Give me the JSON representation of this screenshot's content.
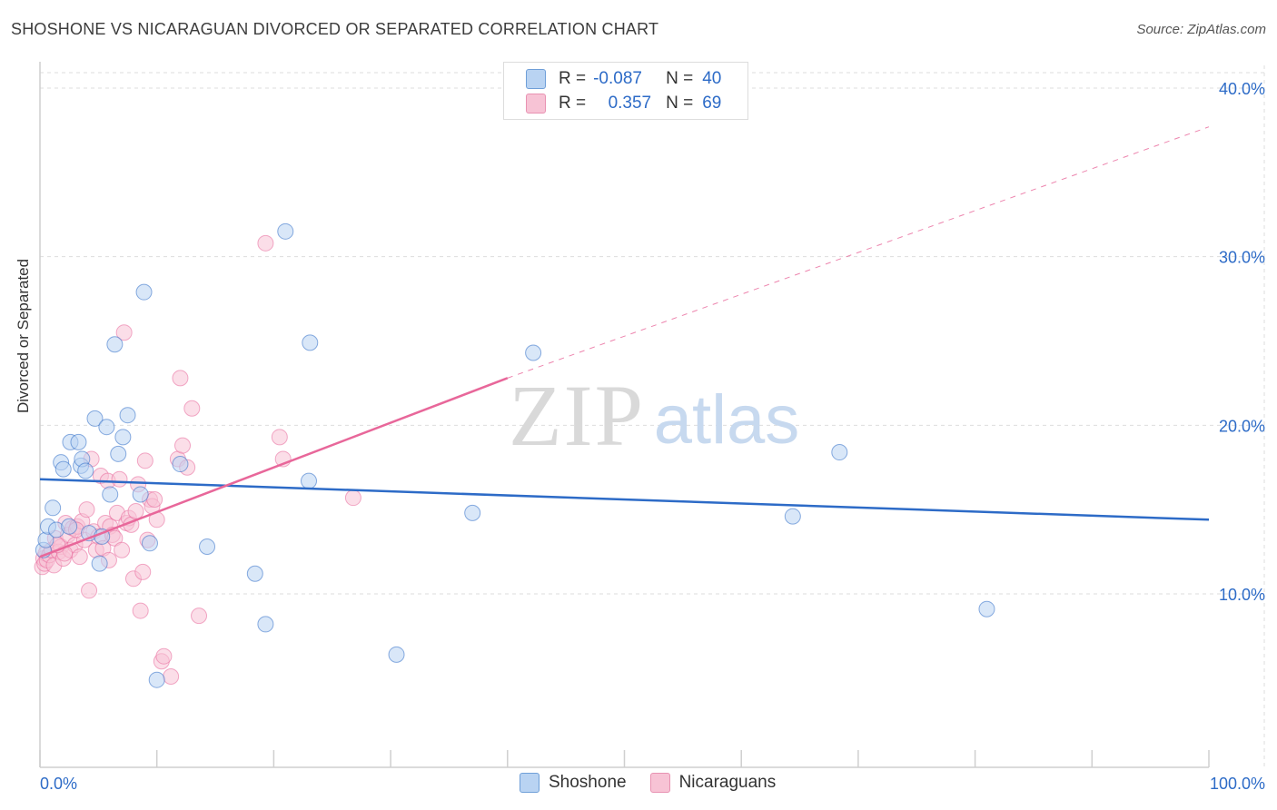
{
  "title": "SHOSHONE VS NICARAGUAN DIVORCED OR SEPARATED CORRELATION CHART",
  "source": "Source: ZipAtlas.com",
  "watermark": {
    "zip": "ZIP",
    "atlas": "atlas"
  },
  "colors": {
    "blue": "#2d6bc7",
    "blue_fill": "#b9d3f2",
    "pink": "#e8679a",
    "pink_fill": "#f7c3d5",
    "grid": "#dddddd",
    "axis_label": "#2d6bc7"
  },
  "legend": {
    "rows": [
      {
        "r_label": "R =",
        "r_value": "-0.087",
        "n_label": "N =",
        "n_value": "40"
      },
      {
        "r_label": "R =",
        "r_value": "0.357",
        "n_label": "N =",
        "n_value": "69"
      }
    ]
  },
  "bottom_legend": [
    "Shoshone",
    "Nicaraguans"
  ],
  "chart_data": {
    "type": "scatter",
    "title": "SHOSHONE VS NICARAGUAN DIVORCED OR SEPARATED CORRELATION CHART",
    "xlabel": "",
    "ylabel": "Divorced or Separated",
    "xlim": [
      0,
      100
    ],
    "ylim": [
      0,
      42
    ],
    "x_tick_labels": [
      {
        "value": 0,
        "label": "0.0%"
      },
      {
        "value": 100,
        "label": "100.0%"
      }
    ],
    "y_tick_labels": [
      {
        "value": 10,
        "label": "10.0%"
      },
      {
        "value": 20,
        "label": "20.0%"
      },
      {
        "value": 30,
        "label": "30.0%"
      },
      {
        "value": 40,
        "label": "40.0%"
      }
    ],
    "x_minor_ticks": [
      0,
      10,
      20,
      30,
      40,
      50,
      60,
      70,
      80,
      90,
      100
    ],
    "grid": true,
    "legend": "top-center",
    "series": [
      {
        "name": "Shoshone",
        "color": "#2d6bc7",
        "fill": "#b9d3f2",
        "R": -0.087,
        "N": 40,
        "trend": {
          "x": [
            0,
            100
          ],
          "y": [
            16.8,
            14.4
          ],
          "dashed_after": null
        },
        "points": [
          [
            0.3,
            12.6
          ],
          [
            0.5,
            13.2
          ],
          [
            0.7,
            14.0
          ],
          [
            1.1,
            15.1
          ],
          [
            1.4,
            13.8
          ],
          [
            1.8,
            17.8
          ],
          [
            2.0,
            17.4
          ],
          [
            2.5,
            14.0
          ],
          [
            2.6,
            19.0
          ],
          [
            3.3,
            19.0
          ],
          [
            3.5,
            17.6
          ],
          [
            3.6,
            18.0
          ],
          [
            3.9,
            17.3
          ],
          [
            4.2,
            13.6
          ],
          [
            4.7,
            20.4
          ],
          [
            5.1,
            11.8
          ],
          [
            5.3,
            13.4
          ],
          [
            5.7,
            19.9
          ],
          [
            6.0,
            15.9
          ],
          [
            6.4,
            24.8
          ],
          [
            6.7,
            18.3
          ],
          [
            7.1,
            19.3
          ],
          [
            7.5,
            20.6
          ],
          [
            8.6,
            15.9
          ],
          [
            8.9,
            27.9
          ],
          [
            9.4,
            13.0
          ],
          [
            10.0,
            4.9
          ],
          [
            12.0,
            17.7
          ],
          [
            14.3,
            12.8
          ],
          [
            18.4,
            11.2
          ],
          [
            19.3,
            8.2
          ],
          [
            21.0,
            31.5
          ],
          [
            23.0,
            16.7
          ],
          [
            23.1,
            24.9
          ],
          [
            30.5,
            6.4
          ],
          [
            37.0,
            14.8
          ],
          [
            42.2,
            24.3
          ],
          [
            64.4,
            14.6
          ],
          [
            68.4,
            18.4
          ],
          [
            81.0,
            9.1
          ]
        ]
      },
      {
        "name": "Nicaraguans",
        "color": "#e8679a",
        "fill": "#f7c3d5",
        "R": 0.357,
        "N": 69,
        "trend": {
          "x": [
            0,
            40,
            100
          ],
          "y": [
            12.2,
            22.8,
            37.7
          ],
          "dashed_after": 40
        },
        "points": [
          [
            0.2,
            11.6
          ],
          [
            0.3,
            12.1
          ],
          [
            0.4,
            11.8
          ],
          [
            0.5,
            12.4
          ],
          [
            0.6,
            12.0
          ],
          [
            0.8,
            12.3
          ],
          [
            1.0,
            12.6
          ],
          [
            1.2,
            11.7
          ],
          [
            1.3,
            13.3
          ],
          [
            1.6,
            12.5
          ],
          [
            1.8,
            12.8
          ],
          [
            2.0,
            12.1
          ],
          [
            2.2,
            14.2
          ],
          [
            2.4,
            13.5
          ],
          [
            2.6,
            12.6
          ],
          [
            2.8,
            13.9
          ],
          [
            3.0,
            12.9
          ],
          [
            3.2,
            14.0
          ],
          [
            3.4,
            12.2
          ],
          [
            3.6,
            14.3
          ],
          [
            3.8,
            13.2
          ],
          [
            4.0,
            15.0
          ],
          [
            4.2,
            10.2
          ],
          [
            4.4,
            18.0
          ],
          [
            4.6,
            13.7
          ],
          [
            4.8,
            12.6
          ],
          [
            5.0,
            13.4
          ],
          [
            5.2,
            17.0
          ],
          [
            5.4,
            12.7
          ],
          [
            5.6,
            14.2
          ],
          [
            5.8,
            16.7
          ],
          [
            6.0,
            14.0
          ],
          [
            6.2,
            13.5
          ],
          [
            6.4,
            13.3
          ],
          [
            6.6,
            14.8
          ],
          [
            6.8,
            16.8
          ],
          [
            7.0,
            12.6
          ],
          [
            7.2,
            25.5
          ],
          [
            7.4,
            14.2
          ],
          [
            7.6,
            14.5
          ],
          [
            7.8,
            14.1
          ],
          [
            8.0,
            10.9
          ],
          [
            8.2,
            14.9
          ],
          [
            8.4,
            16.5
          ],
          [
            8.6,
            9.0
          ],
          [
            8.8,
            11.3
          ],
          [
            9.0,
            17.9
          ],
          [
            9.2,
            13.2
          ],
          [
            9.4,
            15.6
          ],
          [
            9.6,
            15.2
          ],
          [
            9.8,
            15.6
          ],
          [
            10.0,
            14.4
          ],
          [
            10.4,
            6.0
          ],
          [
            10.6,
            6.3
          ],
          [
            11.2,
            5.1
          ],
          [
            11.8,
            18.0
          ],
          [
            12.0,
            22.8
          ],
          [
            12.2,
            18.8
          ],
          [
            12.6,
            17.5
          ],
          [
            13.0,
            21.0
          ],
          [
            13.6,
            8.7
          ],
          [
            19.3,
            30.8
          ],
          [
            20.5,
            19.3
          ],
          [
            20.8,
            18.0
          ],
          [
            26.8,
            15.7
          ],
          [
            3.1,
            13.8
          ],
          [
            5.9,
            12.0
          ],
          [
            2.1,
            12.4
          ],
          [
            1.5,
            12.9
          ]
        ]
      }
    ]
  }
}
